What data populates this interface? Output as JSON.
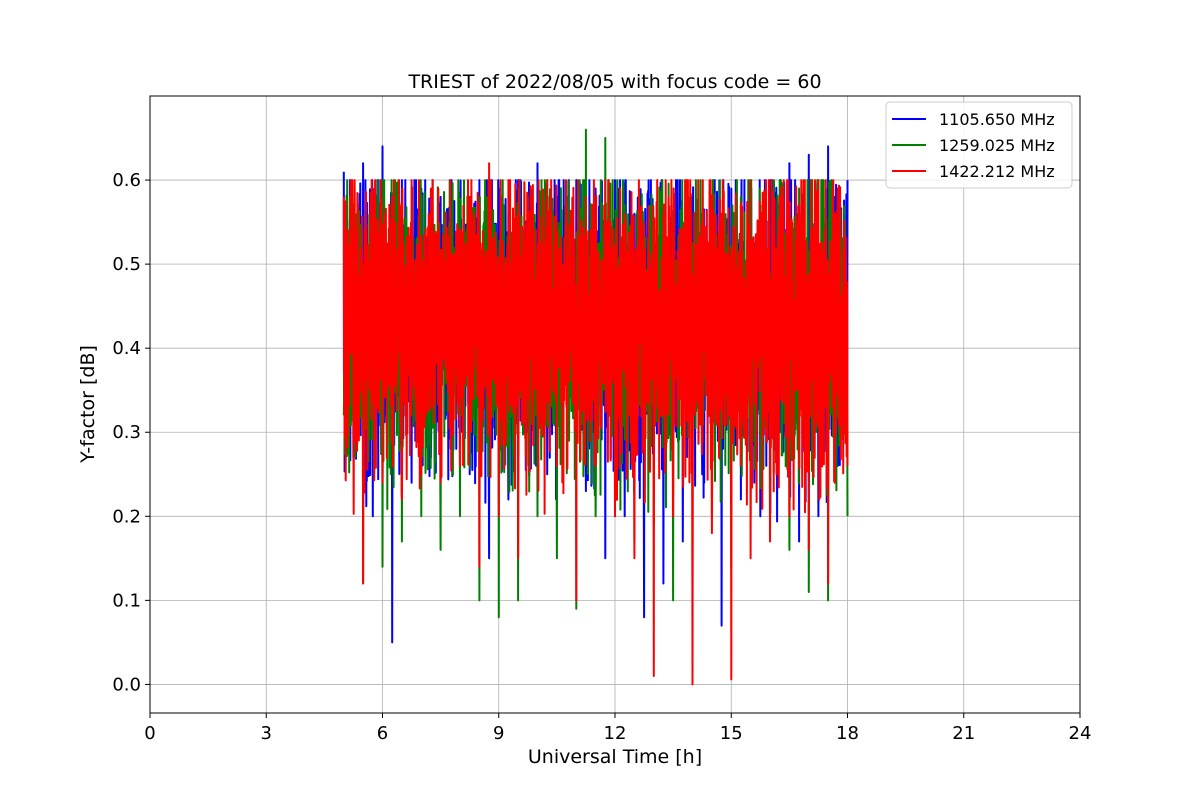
{
  "chart_data": {
    "type": "line",
    "title": "TRIEST of 2022/08/05 with focus code = 60",
    "xlabel": "Universal Time [h]",
    "ylabel": "Y-factor [dB]",
    "xlim": [
      0,
      24
    ],
    "ylim": [
      -0.034,
      0.7
    ],
    "x_ticks": [
      0,
      3,
      6,
      9,
      12,
      15,
      18,
      21,
      24
    ],
    "y_ticks": [
      0.0,
      0.1,
      0.2,
      0.3,
      0.4,
      0.5,
      0.6
    ],
    "y_tick_labels": [
      "0.0",
      "0.1",
      "0.2",
      "0.3",
      "0.4",
      "0.5",
      "0.6"
    ],
    "grid": true,
    "legend_position": "top-right",
    "series": [
      {
        "name": "1105.650 MHz",
        "color": "#0000ff",
        "x": [
          5.0,
          5.25,
          5.5,
          5.75,
          6.0,
          6.25,
          6.5,
          6.75,
          7.0,
          7.25,
          7.5,
          7.75,
          8.0,
          8.25,
          8.5,
          8.75,
          9.0,
          9.25,
          9.5,
          9.75,
          10.0,
          10.25,
          10.5,
          10.75,
          11.0,
          11.25,
          11.5,
          11.75,
          12.0,
          12.25,
          12.5,
          12.75,
          13.0,
          13.25,
          13.5,
          13.75,
          14.0,
          14.25,
          14.5,
          14.75,
          15.0,
          15.25,
          15.5,
          15.75,
          16.0,
          16.25,
          16.5,
          16.75,
          17.0,
          17.25,
          17.5,
          17.75,
          18.0
        ],
        "y": [
          0.61,
          0.27,
          0.62,
          0.2,
          0.64,
          0.05,
          0.6,
          0.24,
          0.59,
          0.27,
          0.58,
          0.3,
          0.56,
          0.25,
          0.6,
          0.15,
          0.58,
          0.22,
          0.6,
          0.3,
          0.62,
          0.25,
          0.58,
          0.33,
          0.6,
          0.23,
          0.59,
          0.15,
          0.6,
          0.2,
          0.56,
          0.08,
          0.55,
          0.12,
          0.53,
          0.17,
          0.58,
          0.25,
          0.55,
          0.07,
          0.59,
          0.22,
          0.58,
          0.2,
          0.6,
          0.3,
          0.62,
          0.17,
          0.63,
          0.2,
          0.64,
          0.26,
          0.6
        ],
        "min": 0.054
      },
      {
        "name": "1259.025 MHz",
        "color": "#008000",
        "x": [
          5.0,
          5.25,
          5.5,
          5.75,
          6.0,
          6.25,
          6.5,
          6.75,
          7.0,
          7.25,
          7.5,
          7.75,
          8.0,
          8.25,
          8.5,
          8.75,
          9.0,
          9.25,
          9.5,
          9.75,
          10.0,
          10.25,
          10.5,
          10.75,
          11.0,
          11.25,
          11.5,
          11.75,
          12.0,
          12.25,
          12.5,
          12.75,
          13.0,
          13.25,
          13.5,
          13.75,
          14.0,
          14.25,
          14.5,
          14.75,
          15.0,
          15.25,
          15.5,
          15.75,
          16.0,
          16.25,
          16.5,
          16.75,
          17.0,
          17.25,
          17.5,
          17.75,
          18.0
        ],
        "y": [
          0.32,
          0.52,
          0.12,
          0.55,
          0.14,
          0.56,
          0.17,
          0.55,
          0.2,
          0.56,
          0.16,
          0.55,
          0.2,
          0.56,
          0.1,
          0.57,
          0.08,
          0.56,
          0.1,
          0.58,
          0.2,
          0.6,
          0.15,
          0.58,
          0.09,
          0.66,
          0.2,
          0.65,
          0.2,
          0.57,
          0.17,
          0.55,
          0.19,
          0.54,
          0.1,
          0.55,
          0.12,
          0.56,
          0.2,
          0.55,
          0.14,
          0.58,
          0.2,
          0.57,
          0.18,
          0.6,
          0.16,
          0.59,
          0.11,
          0.6,
          0.1,
          0.58,
          0.2
        ],
        "min": 0.077
      },
      {
        "name": "1422.212 MHz",
        "color": "#ff0000",
        "x": [
          5.0,
          5.25,
          5.5,
          5.75,
          6.0,
          6.25,
          6.5,
          6.75,
          7.0,
          7.25,
          7.5,
          7.75,
          8.0,
          8.25,
          8.5,
          8.75,
          9.0,
          9.25,
          9.5,
          9.75,
          10.0,
          10.25,
          10.5,
          10.75,
          11.0,
          11.25,
          11.5,
          11.75,
          12.0,
          12.25,
          12.5,
          12.75,
          13.0,
          13.25,
          13.5,
          13.75,
          14.0,
          14.25,
          14.5,
          14.75,
          15.0,
          15.25,
          15.5,
          15.75,
          16.0,
          16.25,
          16.5,
          16.75,
          17.0,
          17.25,
          17.5,
          17.75,
          18.0
        ],
        "y": [
          0.58,
          0.3,
          0.12,
          0.59,
          0.24,
          0.58,
          0.22,
          0.6,
          0.25,
          0.59,
          0.24,
          0.6,
          0.26,
          0.58,
          0.14,
          0.62,
          0.2,
          0.6,
          0.15,
          0.58,
          0.32,
          0.6,
          0.26,
          0.57,
          0.1,
          0.58,
          0.26,
          0.6,
          0.2,
          0.56,
          0.15,
          0.55,
          0.01,
          0.56,
          0.2,
          0.54,
          0.0,
          0.55,
          0.18,
          0.56,
          0.006,
          0.57,
          0.15,
          0.56,
          0.17,
          0.58,
          0.2,
          0.57,
          0.16,
          0.6,
          0.12,
          0.59,
          0.26
        ],
        "min": 0.0
      }
    ]
  }
}
